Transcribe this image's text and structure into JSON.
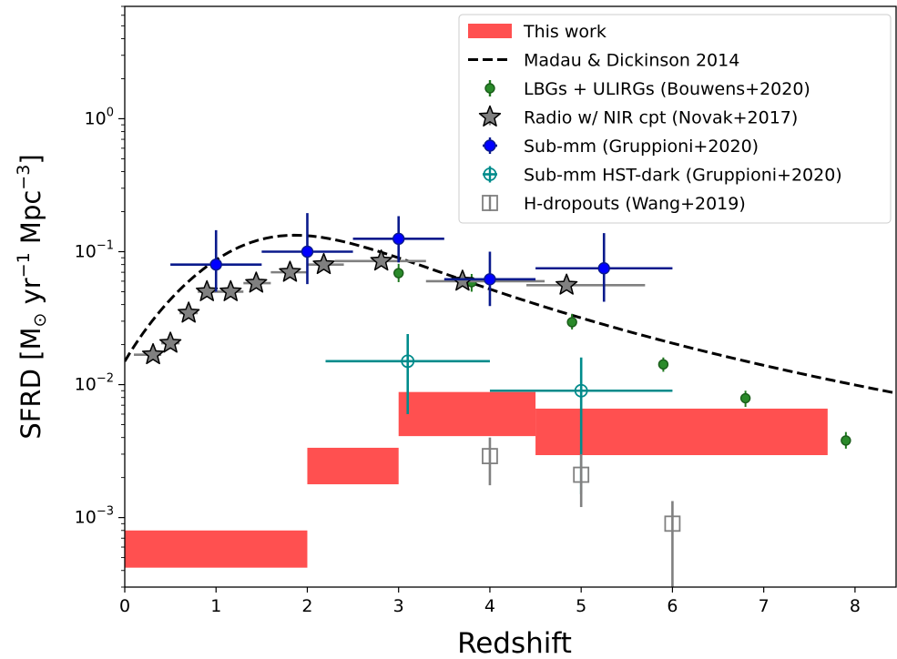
{
  "chart_data": {
    "type": "scatter",
    "xlabel": "Redshift",
    "ylabel_parts": [
      "SFRD [M",
      "⊙",
      " yr",
      "−1",
      " Mpc",
      "−3",
      "]"
    ],
    "xlim": [
      0,
      8.45
    ],
    "ylim": [
      0.0003,
      7.0
    ],
    "yscale": "log",
    "grid": false,
    "legend_position": "top-right",
    "xticks": [
      0,
      1,
      2,
      3,
      4,
      5,
      6,
      7,
      8
    ],
    "xtick_labels": [
      "0",
      "1",
      "2",
      "3",
      "4",
      "5",
      "6",
      "7",
      "8"
    ],
    "yticks": [
      {
        "value": 0.001,
        "base": "10",
        "exp": "−3"
      },
      {
        "value": 0.01,
        "base": "10",
        "exp": "−2"
      },
      {
        "value": 0.1,
        "base": "10",
        "exp": "−1"
      },
      {
        "value": 1,
        "base": "10",
        "exp": "0"
      }
    ],
    "series": [
      {
        "name": "This work",
        "kind": "band",
        "color": "#ff5050",
        "segments": [
          {
            "x0": 0.0,
            "x1": 2.0,
            "low": 0.00042,
            "high": 0.0008
          },
          {
            "x0": 2.0,
            "x1": 3.0,
            "low": 0.00178,
            "high": 0.00335
          },
          {
            "x0": 3.0,
            "x1": 4.5,
            "low": 0.0041,
            "high": 0.0088
          },
          {
            "x0": 4.5,
            "x1": 7.7,
            "low": 0.00295,
            "high": 0.0066
          }
        ]
      },
      {
        "name": "Madau & Dickinson 2014",
        "kind": "dashed-line",
        "color": "#000000"
      },
      {
        "name": "LBGs + ULIRGs (Bouwens+2020)",
        "kind": "errorbar",
        "marker": "filled-circle",
        "color": "#1f7a1f",
        "points": [
          {
            "x": 3.0,
            "y": 0.069,
            "ylo": 0.059,
            "yhi": 0.081
          },
          {
            "x": 3.8,
            "y": 0.059,
            "ylo": 0.05,
            "yhi": 0.068
          },
          {
            "x": 4.9,
            "y": 0.0295,
            "ylo": 0.026,
            "yhi": 0.034
          },
          {
            "x": 5.9,
            "y": 0.0142,
            "ylo": 0.0125,
            "yhi": 0.016
          },
          {
            "x": 6.8,
            "y": 0.0079,
            "ylo": 0.0068,
            "yhi": 0.009
          },
          {
            "x": 7.9,
            "y": 0.0038,
            "ylo": 0.0033,
            "yhi": 0.0044
          }
        ]
      },
      {
        "name": "Radio w/ NIR cpt (Novak+2017)",
        "kind": "errorbar",
        "marker": "star",
        "color": "#808080",
        "points": [
          {
            "x": 0.31,
            "y": 0.0168,
            "xlo": 0.1,
            "xhi": 0.4
          },
          {
            "x": 0.5,
            "y": 0.0205,
            "xlo": 0.4,
            "xhi": 0.6
          },
          {
            "x": 0.7,
            "y": 0.0345,
            "xlo": 0.6,
            "xhi": 0.8
          },
          {
            "x": 0.9,
            "y": 0.05,
            "xlo": 0.8,
            "xhi": 1.0
          },
          {
            "x": 1.16,
            "y": 0.05,
            "xlo": 1.0,
            "xhi": 1.3
          },
          {
            "x": 1.44,
            "y": 0.058,
            "xlo": 1.3,
            "xhi": 1.6
          },
          {
            "x": 1.81,
            "y": 0.07,
            "xlo": 1.6,
            "xhi": 2.0
          },
          {
            "x": 2.18,
            "y": 0.08,
            "xlo": 2.0,
            "xhi": 2.4
          },
          {
            "x": 2.81,
            "y": 0.085,
            "xlo": 2.3,
            "xhi": 3.3
          },
          {
            "x": 3.7,
            "y": 0.06,
            "xlo": 3.3,
            "xhi": 4.6
          },
          {
            "x": 4.84,
            "y": 0.056,
            "xlo": 4.4,
            "xhi": 5.7
          }
        ]
      },
      {
        "name": "Sub-mm (Gruppioni+2020)",
        "kind": "errorbar",
        "marker": "filled-circle",
        "color": "#0000ff",
        "line_color": "#0a1a8c",
        "points": [
          {
            "x": 1.0,
            "y": 0.08,
            "xlo": 0.5,
            "xhi": 1.5,
            "ylo": 0.05,
            "yhi": 0.145
          },
          {
            "x": 2.0,
            "y": 0.1,
            "xlo": 1.5,
            "xhi": 2.5,
            "ylo": 0.057,
            "yhi": 0.195
          },
          {
            "x": 3.0,
            "y": 0.125,
            "xlo": 2.5,
            "xhi": 3.5,
            "ylo": 0.083,
            "yhi": 0.185
          },
          {
            "x": 4.0,
            "y": 0.062,
            "xlo": 3.5,
            "xhi": 4.5,
            "ylo": 0.039,
            "yhi": 0.1
          },
          {
            "x": 5.25,
            "y": 0.075,
            "xlo": 4.5,
            "xhi": 6.0,
            "ylo": 0.042,
            "yhi": 0.138
          }
        ]
      },
      {
        "name": "Sub-mm HST-dark (Gruppioni+2020)",
        "kind": "errorbar",
        "marker": "open-circle",
        "color": "#008b8b",
        "points": [
          {
            "x": 3.1,
            "y": 0.015,
            "xlo": 2.2,
            "xhi": 4.0,
            "ylo": 0.006,
            "yhi": 0.024
          },
          {
            "x": 5.0,
            "y": 0.009,
            "xlo": 4.0,
            "xhi": 6.0,
            "ylo": 0.0015,
            "yhi": 0.016
          }
        ]
      },
      {
        "name": "H-dropouts (Wang+2019)",
        "kind": "errorbar",
        "marker": "open-square",
        "color": "#808080",
        "points": [
          {
            "x": 4.0,
            "y": 0.0029,
            "ylo": 0.00175,
            "yhi": 0.004
          },
          {
            "x": 5.0,
            "y": 0.0021,
            "ylo": 0.0012,
            "yhi": 0.003
          },
          {
            "x": 6.0,
            "y": 0.0009,
            "ylo": 0.0003,
            "yhi": 0.00133
          }
        ]
      }
    ]
  }
}
